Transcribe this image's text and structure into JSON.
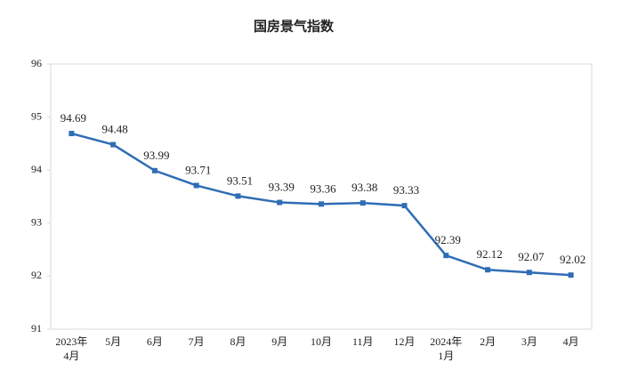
{
  "chart_data": {
    "type": "line",
    "title": "国房景气指数",
    "categories": [
      "2023年4月",
      "5月",
      "6月",
      "7月",
      "8月",
      "9月",
      "10月",
      "11月",
      "12月",
      "2024年1月",
      "2月",
      "3月",
      "4月"
    ],
    "values": [
      94.69,
      94.48,
      93.99,
      93.71,
      93.51,
      93.39,
      93.36,
      93.38,
      93.33,
      92.39,
      92.12,
      92.07,
      92.02
    ],
    "color": "#2f6db5",
    "ylim": [
      91,
      96
    ],
    "yticks": [
      91,
      92,
      93,
      94,
      95,
      96
    ],
    "grid": false
  }
}
